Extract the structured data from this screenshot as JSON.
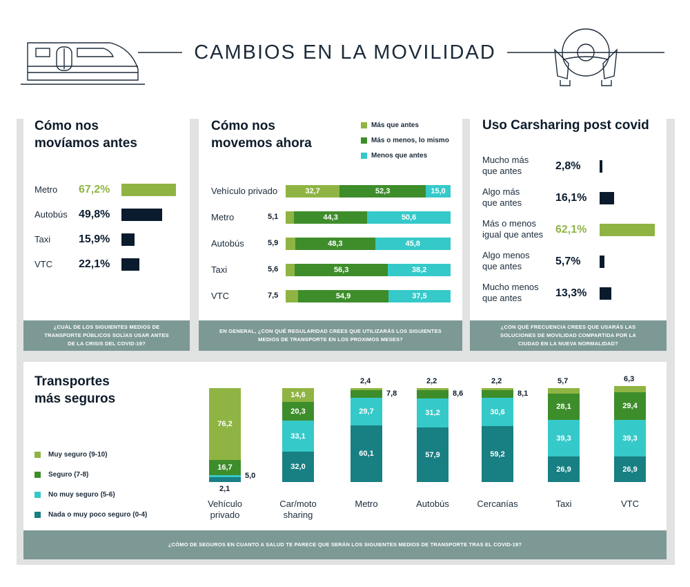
{
  "title": "CAMBIOS EN LA MOVILIDAD",
  "colors": {
    "muy": "#8fb443",
    "seguro": "#3e8d2b",
    "no_muy": "#36c9c9",
    "nada": "#187f83",
    "navy": "#0b1b2e",
    "footer": "#7d9996"
  },
  "panel_antes": {
    "title_line1": "Cómo nos",
    "title_line2": "movíamos antes",
    "question": "¿CUÁL DE LOS SIGUIENTES MEDIOS DE TRANSPORTE PÚBLICOS SOLÍAS USAR ANTES DE LA CRISIS DEL COVID-19?",
    "chart_data": {
      "type": "bar",
      "categories": [
        "Metro",
        "Autobús",
        "Taxi",
        "VTC"
      ],
      "labels": [
        "67,2%",
        "49,8%",
        "15,9%",
        "22,1%"
      ],
      "values": [
        67.2,
        49.8,
        15.9,
        22.1
      ],
      "highlight_index": 0
    }
  },
  "panel_ahora": {
    "title_line1": "Cómo nos",
    "title_line2": "movemos ahora",
    "question": "EN GENERAL, ¿CON QUÉ REGULARIDAD CREES QUE UTILIZARÁS LOS SIGUIENTES MEDIOS DE TRANSPORTE EN LOS PROXIMOS MESES?",
    "chart_data": {
      "type": "bar",
      "stacked": true,
      "categories": [
        "Vehículo privado",
        "Metro",
        "Autobús",
        "Taxi",
        "VTC"
      ],
      "series": [
        {
          "name": "Más que antes",
          "values": [
            32.7,
            5.1,
            5.9,
            5.6,
            7.5
          ],
          "labels": [
            "32,7",
            "5,1",
            "5,9",
            "5,6",
            "7,5"
          ]
        },
        {
          "name": "Más o menos, lo mismo",
          "values": [
            52.3,
            44.3,
            48.3,
            56.3,
            54.9
          ],
          "labels": [
            "52,3",
            "44,3",
            "48,3",
            "56,3",
            "54,9"
          ]
        },
        {
          "name": "Menos que antes",
          "values": [
            15.0,
            50.6,
            45.8,
            38.2,
            37.5
          ],
          "labels": [
            "15,0",
            "50,6",
            "45,8",
            "38,2",
            "37,5"
          ]
        }
      ]
    }
  },
  "panel_carsharing": {
    "title": "Uso Carsharing post covid",
    "question": "¿CON QUÉ FRECUENCIA CREES QUE USARÁS LAS SOLUCIONES DE MOVILIDAD COMPARTIDA POR LA CIUDAD EN LA NUEVA NORMALIDAD?",
    "chart_data": {
      "type": "bar",
      "categories": [
        [
          "Mucho más",
          "que antes"
        ],
        [
          "Algo más",
          "que antes"
        ],
        [
          "Más o menos",
          "igual que antes"
        ],
        [
          "Algo menos",
          "que antes"
        ],
        [
          "Mucho menos",
          "que antes"
        ]
      ],
      "labels": [
        "2,8%",
        "16,1%",
        "62,1%",
        "5,7%",
        "13,3%"
      ],
      "values": [
        2.8,
        16.1,
        62.1,
        5.7,
        13.3
      ],
      "highlight_index": 2
    }
  },
  "panel_seguros": {
    "title_line1": "Transportes",
    "title_line2": "más seguros",
    "question": "¿CÓMO DE SEGUROS EN CUANTO A SALUD TE PARECE QUE SERÁN LOS SIGUIENTES MEDIOS DE TRANSPORTE TRAS EL COVID-19?",
    "chart_data": {
      "type": "bar",
      "stacked": true,
      "categories": [
        [
          "Vehículo",
          "privado"
        ],
        [
          "Car/moto",
          "sharing"
        ],
        [
          "Metro"
        ],
        [
          "Autobús"
        ],
        [
          "Cercanías"
        ],
        [
          "Taxi"
        ],
        [
          "VTC"
        ]
      ],
      "series": [
        {
          "name": "Muy seguro (9-10)",
          "values": [
            76.2,
            14.6,
            2.4,
            2.2,
            2.2,
            5.7,
            6.3
          ],
          "labels": [
            "76,2",
            "14,6",
            "2,4",
            "2,2",
            "2,2",
            "5,7",
            "6,3"
          ]
        },
        {
          "name": "Seguro (7-8)",
          "values": [
            16.7,
            20.3,
            7.8,
            8.6,
            8.1,
            28.1,
            29.4
          ],
          "labels": [
            "16,7",
            "20,3",
            "7,8",
            "8,6",
            "8,1",
            "28,1",
            "29,4"
          ]
        },
        {
          "name": "No muy seguro (5-6)",
          "values": [
            2.1,
            33.1,
            29.7,
            31.2,
            30.6,
            39.3,
            39.3
          ],
          "labels": [
            "2,1",
            "33,1",
            "29,7",
            "31,2",
            "30,6",
            "39,3",
            "39,3"
          ]
        },
        {
          "name": "Nada o muy poco seguro (0-4)",
          "values": [
            5.0,
            32.0,
            60.1,
            57.9,
            59.2,
            26.9,
            26.9
          ],
          "labels": [
            "5,0",
            "32,0",
            "60,1",
            "57,9",
            "59,2",
            "26,9",
            "26,9"
          ]
        }
      ]
    }
  }
}
